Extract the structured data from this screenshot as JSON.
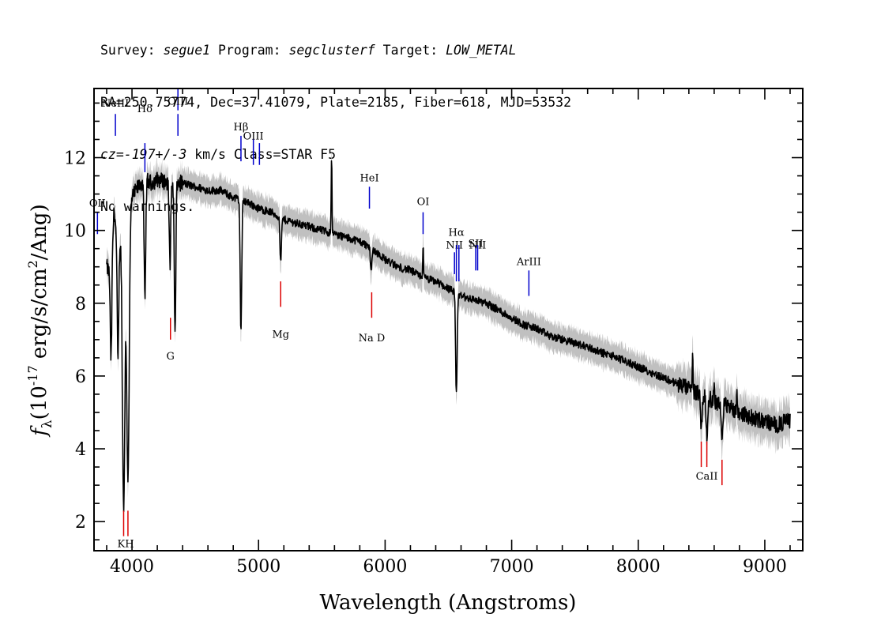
{
  "header": {
    "line1": [
      {
        "text": "Survey: ",
        "italic": false
      },
      {
        "text": "segue1",
        "italic": true
      },
      {
        "text": " Program: ",
        "italic": false
      },
      {
        "text": "segclusterf",
        "italic": true
      },
      {
        "text": " Target: ",
        "italic": false
      },
      {
        "text": "LOW_METAL",
        "italic": true
      }
    ],
    "line2": "RA=250.75774, Dec=37.41079, Plate=2185, Fiber=618, MJD=53532",
    "line3": [
      {
        "text": "cz=-197+/-3",
        "italic": true
      },
      {
        "text": " km/s Class=STAR F5",
        "italic": false
      }
    ],
    "line4": "No warnings."
  },
  "chart_data": {
    "type": "line",
    "xlabel": "Wavelength (Angstroms)",
    "ylabel_main": "(10",
    "ylabel_sup": "-17",
    "ylabel_rest": " erg/s/cm",
    "ylabel_sup2": "2",
    "ylabel_end": "/Ang)",
    "ylabel_symbol": "f",
    "ylabel_sub": "λ",
    "xlim": [
      3700,
      9300
    ],
    "ylim": [
      1.2,
      13.9
    ],
    "x_ticks": [
      4000,
      5000,
      6000,
      7000,
      8000,
      9000
    ],
    "x_tick_labels": [
      "4000",
      "5000",
      "6000",
      "7000",
      "8000",
      "9000"
    ],
    "y_ticks": [
      2,
      4,
      6,
      8,
      10,
      12
    ],
    "y_tick_labels": [
      "2",
      "4",
      "6",
      "8",
      "10",
      "12"
    ],
    "spectrum_anchor_points": [
      [
        3800,
        9.0
      ],
      [
        3830,
        8.8
      ],
      [
        3860,
        10.6
      ],
      [
        3890,
        9.3
      ],
      [
        3920,
        10.3
      ],
      [
        3950,
        10.5
      ],
      [
        4000,
        10.9
      ],
      [
        4050,
        11.2
      ],
      [
        4100,
        11.4
      ],
      [
        4150,
        11.3
      ],
      [
        4200,
        11.4
      ],
      [
        4300,
        11.3
      ],
      [
        4400,
        11.3
      ],
      [
        4500,
        11.2
      ],
      [
        4600,
        11.1
      ],
      [
        4700,
        11.1
      ],
      [
        4800,
        10.9
      ],
      [
        4900,
        10.8
      ],
      [
        5000,
        10.6
      ],
      [
        5100,
        10.5
      ],
      [
        5200,
        10.3
      ],
      [
        5300,
        10.2
      ],
      [
        5400,
        10.1
      ],
      [
        5500,
        10.0
      ],
      [
        5600,
        9.9
      ],
      [
        5700,
        9.8
      ],
      [
        5800,
        9.7
      ],
      [
        5900,
        9.5
      ],
      [
        6000,
        9.2
      ],
      [
        6100,
        9.0
      ],
      [
        6200,
        8.9
      ],
      [
        6300,
        8.7
      ],
      [
        6400,
        8.6
      ],
      [
        6500,
        8.4
      ],
      [
        6600,
        8.2
      ],
      [
        6700,
        8.1
      ],
      [
        6800,
        8.0
      ],
      [
        6900,
        7.8
      ],
      [
        7000,
        7.6
      ],
      [
        7100,
        7.4
      ],
      [
        7200,
        7.3
      ],
      [
        7300,
        7.1
      ],
      [
        7400,
        7.0
      ],
      [
        7500,
        6.9
      ],
      [
        7600,
        6.8
      ],
      [
        7700,
        6.65
      ],
      [
        7800,
        6.55
      ],
      [
        7900,
        6.4
      ],
      [
        8000,
        6.25
      ],
      [
        8100,
        6.1
      ],
      [
        8200,
        5.95
      ],
      [
        8300,
        5.8
      ],
      [
        8400,
        5.65
      ],
      [
        8500,
        5.5
      ],
      [
        8600,
        5.3
      ],
      [
        8700,
        5.2
      ],
      [
        8800,
        5.0
      ],
      [
        8900,
        4.85
      ],
      [
        9000,
        4.75
      ],
      [
        9100,
        4.65
      ],
      [
        9200,
        4.8
      ]
    ],
    "absorption_features": [
      {
        "x": 3835,
        "depth": 2.6
      },
      {
        "x": 3889,
        "depth": 3.0
      },
      {
        "x": 3934,
        "depth": 8.0
      },
      {
        "x": 3968,
        "depth": 7.4
      },
      {
        "x": 4102,
        "depth": 3.4
      },
      {
        "x": 4300,
        "depth": 2.2
      },
      {
        "x": 4340,
        "depth": 4.2
      },
      {
        "x": 4861,
        "depth": 3.6
      },
      {
        "x": 5175,
        "depth": 1.2
      },
      {
        "x": 5890,
        "depth": 0.6
      },
      {
        "x": 6563,
        "depth": 2.8
      },
      {
        "x": 8498,
        "depth": 0.9
      },
      {
        "x": 8542,
        "depth": 1.1
      },
      {
        "x": 8662,
        "depth": 1.1
      }
    ],
    "spikes": [
      {
        "x": 5577,
        "height": 2.2
      },
      {
        "x": 6300,
        "height": 0.9
      },
      {
        "x": 8430,
        "height": 0.9
      },
      {
        "x": 8600,
        "height": 0.6
      },
      {
        "x": 8780,
        "height": 0.5
      }
    ],
    "emission_line_labels": [
      {
        "label": "OII",
        "x": 3727,
        "y_top": 10.5,
        "y_bottom": 9.9,
        "text_y": 10.65
      },
      {
        "label": "NeIII",
        "x": 3869,
        "y_top": 13.2,
        "y_bottom": 12.6,
        "text_y": 13.4
      },
      {
        "label": "Hδ",
        "x": 4102,
        "y_top": 12.4,
        "y_bottom": 11.6,
        "text_y": 13.25
      },
      {
        "label": "OIII",
        "x": 4363,
        "y_top": 13.9,
        "y_bottom": 13.3,
        "text_y": 13.45
      },
      {
        "label": "OIII",
        "x": 4363,
        "y_top": 13.2,
        "y_bottom": 12.6,
        "text_y": null
      },
      {
        "label": "Hβ",
        "x": 4861,
        "y_top": 12.6,
        "y_bottom": 11.9,
        "text_y": 12.75
      },
      {
        "label": "OIII",
        "x": 4959,
        "y_top": 12.5,
        "y_bottom": 11.8,
        "text_y": 12.5
      },
      {
        "label": "",
        "x": 5007,
        "y_top": 12.4,
        "y_bottom": 11.8,
        "text_y": null
      },
      {
        "label": "HeI",
        "x": 5876,
        "y_top": 11.2,
        "y_bottom": 10.6,
        "text_y": 11.35
      },
      {
        "label": "OI",
        "x": 6300,
        "y_top": 10.5,
        "y_bottom": 9.9,
        "text_y": 10.7
      },
      {
        "label": "NII",
        "x": 6548,
        "y_top": 9.4,
        "y_bottom": 8.8,
        "text_y": 9.5
      },
      {
        "label": "Hα",
        "x": 6563,
        "y_top": 9.6,
        "y_bottom": 8.6,
        "text_y": 9.85
      },
      {
        "label": "NII",
        "x": 6583,
        "y_top": 9.6,
        "y_bottom": 8.6,
        "text_y": null
      },
      {
        "label": "SII",
        "x": 6716,
        "y_top": 9.6,
        "y_bottom": 8.9,
        "text_y": 9.55
      },
      {
        "label": "NII",
        "x": 6731,
        "y_top": 9.6,
        "y_bottom": 8.9,
        "text_y": 9.5
      },
      {
        "label": "ArIII",
        "x": 7136,
        "y_top": 8.9,
        "y_bottom": 8.2,
        "text_y": 9.05
      }
    ],
    "absorption_line_labels": [
      {
        "label": "KH",
        "x": 3950,
        "marks": [
          3934,
          3968
        ],
        "y_top": 2.3,
        "y_bottom": 1.6,
        "text_y": 1.3
      },
      {
        "label": "G",
        "x": 4304,
        "marks": [
          4304
        ],
        "y_top": 7.6,
        "y_bottom": 7.0,
        "text_y": 6.45
      },
      {
        "label": "Mg",
        "x": 5175,
        "marks": [
          5175
        ],
        "y_top": 8.6,
        "y_bottom": 7.9,
        "text_y": 7.05
      },
      {
        "label": "Na D",
        "x": 5894,
        "marks": [
          5894
        ],
        "y_top": 8.3,
        "y_bottom": 7.6,
        "text_y": 6.95
      },
      {
        "label": "CaII",
        "x": 8542,
        "marks": [
          8498,
          8542,
          8662
        ],
        "y_top": 4.2,
        "y_bottom": 3.5,
        "text_y": 3.15
      }
    ],
    "colors": {
      "flux": "#000000",
      "error_band": "#c0c0c0",
      "emission_marker": "#0000cc",
      "absorption_marker": "#dd0000",
      "axes": "#000000"
    }
  }
}
